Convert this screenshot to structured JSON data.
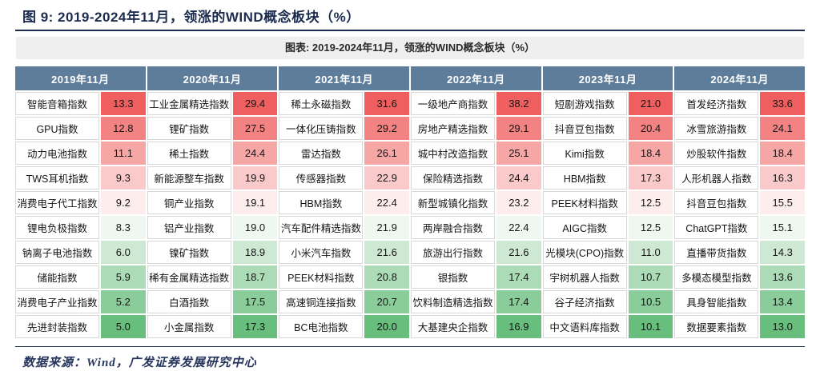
{
  "figure": {
    "title": "图 9:  2019-2024年11月，领涨的WIND概念板块（%）",
    "caption": "图表: 2019-2024年11月，领涨的WIND概念板块（%）",
    "source": "数据来源：Wind，广发证券发展研究中心"
  },
  "colors": {
    "header_bg": "#5e7d9a",
    "heat_red_max": "#f05f5f",
    "heat_green_max": "#68be7d",
    "heat_mid": "#ffffff",
    "title_navy": "#1b2b4e",
    "caption_band_bg": "#efefef"
  },
  "chart_data": {
    "type": "table",
    "title": "2019-2024年11月，领涨的WIND概念板块（%）",
    "note": "Top-10 gaining WIND concept indexes per November of each year; value cells are heat-colored from red (top rank) through white to green (bottom rank) within each column",
    "categories": [
      "2019年11月",
      "2020年11月",
      "2021年11月",
      "2022年11月",
      "2023年11月",
      "2024年11月"
    ],
    "columns": [
      {
        "header": "2019年11月",
        "rows": [
          [
            "智能音箱指数",
            13.3
          ],
          [
            "GPU指数",
            12.8
          ],
          [
            "动力电池指数",
            11.1
          ],
          [
            "TWS耳机指数",
            9.3
          ],
          [
            "消费电子代工指数",
            9.2
          ],
          [
            "锂电负极指数",
            8.3
          ],
          [
            "钠离子电池指数",
            6.0
          ],
          [
            "储能指数",
            5.9
          ],
          [
            "消费电子产业指数",
            5.2
          ],
          [
            "先进封装指数",
            5.0
          ]
        ]
      },
      {
        "header": "2020年11月",
        "rows": [
          [
            "工业金属精选指数",
            29.4
          ],
          [
            "锂矿指数",
            27.5
          ],
          [
            "稀土指数",
            24.4
          ],
          [
            "新能源整车指数",
            19.9
          ],
          [
            "铜产业指数",
            19.1
          ],
          [
            "铝产业指数",
            19.0
          ],
          [
            "镍矿指数",
            18.9
          ],
          [
            "稀有金属精选指数",
            18.7
          ],
          [
            "白酒指数",
            17.5
          ],
          [
            "小金属指数",
            17.3
          ]
        ]
      },
      {
        "header": "2021年11月",
        "rows": [
          [
            "稀土永磁指数",
            31.6
          ],
          [
            "一体化压铸指数",
            29.2
          ],
          [
            "雷达指数",
            26.1
          ],
          [
            "传感器指数",
            22.9
          ],
          [
            "HBM指数",
            22.4
          ],
          [
            "汽车配件精选指数",
            21.9
          ],
          [
            "小米汽车指数",
            21.6
          ],
          [
            "PEEK材料指数",
            20.8
          ],
          [
            "高速铜连接指数",
            20.7
          ],
          [
            "BC电池指数",
            20.0
          ]
        ]
      },
      {
        "header": "2022年11月",
        "rows": [
          [
            "一级地产商指数",
            38.2
          ],
          [
            "房地产精选指数",
            29.1
          ],
          [
            "城中村改造指数",
            25.1
          ],
          [
            "保险精选指数",
            24.4
          ],
          [
            "新型城镇化指数",
            23.2
          ],
          [
            "两岸融合指数",
            22.4
          ],
          [
            "旅游出行指数",
            21.6
          ],
          [
            "银指数",
            17.4
          ],
          [
            "饮料制造精选指数",
            17.4
          ],
          [
            "大基建央企指数",
            16.9
          ]
        ]
      },
      {
        "header": "2023年11月",
        "rows": [
          [
            "短剧游戏指数",
            21.0
          ],
          [
            "抖音豆包指数",
            20.4
          ],
          [
            "Kimi指数",
            18.4
          ],
          [
            "HBM指数",
            17.3
          ],
          [
            "PEEK材料指数",
            12.5
          ],
          [
            "AIGC指数",
            12.5
          ],
          [
            "光模块(CPO)指数",
            11.0
          ],
          [
            "宇树机器人指数",
            10.7
          ],
          [
            "谷子经济指数",
            10.5
          ],
          [
            "中文语料库指数",
            10.1
          ]
        ]
      },
      {
        "header": "2024年11月",
        "rows": [
          [
            "首发经济指数",
            33.6
          ],
          [
            "冰雪旅游指数",
            24.1
          ],
          [
            "炒股软件指数",
            18.4
          ],
          [
            "人形机器人指数",
            16.3
          ],
          [
            "抖音豆包指数",
            15.5
          ],
          [
            "ChatGPT指数",
            15.1
          ],
          [
            "直播带货指数",
            14.3
          ],
          [
            "多模态模型指数",
            13.6
          ],
          [
            "具身智能指数",
            13.4
          ],
          [
            "数据要素指数",
            13.0
          ]
        ]
      }
    ]
  }
}
